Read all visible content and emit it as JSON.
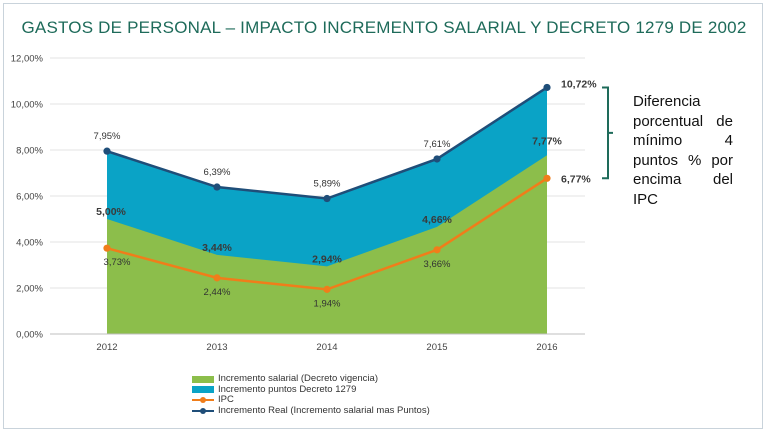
{
  "title": "GASTOS DE PERSONAL – IMPACTO INCREMENTO SALARIAL Y DECRETO 1279 DE 2002",
  "note": "Diferencia porcentual de mínimo 4 puntos % por encima del IPC",
  "colors": {
    "green": "#8cbe4b",
    "teal": "#0aa3c6",
    "orange": "#f07d1a",
    "navy": "#1f4e79",
    "title": "#1e6b5a",
    "bracket": "#1e6b5a"
  },
  "chart_data": {
    "type": "area",
    "categories": [
      "2012",
      "2013",
      "2014",
      "2015",
      "2016"
    ],
    "ylim": [
      0,
      12
    ],
    "yticks": [
      "0,00%",
      "2,00%",
      "4,00%",
      "6,00%",
      "8,00%",
      "10,00%",
      "12,00%"
    ],
    "grid": true,
    "legend_position": "bottom",
    "series": [
      {
        "name": "Incremento salarial (Decreto vigencia)",
        "kind": "area",
        "values": [
          5.0,
          3.44,
          2.94,
          4.66,
          7.77
        ],
        "labels": [
          "5,00%",
          "3,44%",
          "2,94%",
          "4,66%",
          "7,77%"
        ]
      },
      {
        "name": "Incremento puntos Decreto 1279",
        "kind": "area",
        "values": [
          7.95,
          6.39,
          5.89,
          7.61,
          10.72
        ]
      },
      {
        "name": "IPC",
        "kind": "line",
        "values": [
          3.73,
          2.44,
          1.94,
          3.66,
          6.77
        ],
        "labels": [
          "3,73%",
          "2,44%",
          "1,94%",
          "3,66%",
          "6,77%"
        ]
      },
      {
        "name": "Incremento Real (Incremento salarial mas Puntos)",
        "kind": "line",
        "values": [
          7.95,
          6.39,
          5.89,
          7.61,
          10.72
        ],
        "labels": [
          "7,95%",
          "6,39%",
          "5,89%",
          "7,61%",
          "10,72%"
        ]
      }
    ]
  }
}
